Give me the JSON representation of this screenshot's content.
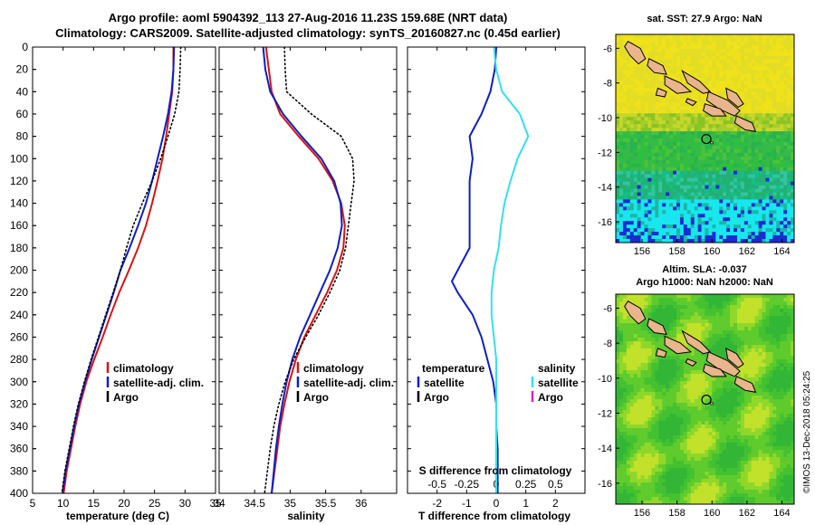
{
  "title": {
    "line1": "Argo profile: aoml 5904392_113 27-Aug-2016 11.23S 159.68E (NRT data)",
    "line2": "Climatology: CARS2009. Satellite-adjusted climatology: synTS_20160827.nc (0.45d earlier)"
  },
  "timestamp": "©IMOS 13-Dec-2018 05:24:25",
  "colors": {
    "climatology": "#dd1111",
    "satellite": "#0b1fc8",
    "argo": "#000000",
    "sat_s": "#33e0ee",
    "argo_s": "#cc22cc",
    "land": "#e8b58c"
  },
  "chart_data": [
    {
      "id": "temperature",
      "type": "line",
      "xlabel": "temperature (deg C)",
      "ylabel": "pressure",
      "xlim": [
        5,
        35
      ],
      "ylim": [
        400,
        0
      ],
      "xticks": [
        5,
        10,
        15,
        20,
        25,
        30,
        35
      ],
      "yticks": [
        0,
        20,
        40,
        60,
        80,
        100,
        120,
        140,
        160,
        180,
        200,
        220,
        240,
        260,
        280,
        300,
        320,
        340,
        360,
        380,
        400
      ],
      "legend": [
        "climatology",
        "satellite-adj. clim.",
        "Argo"
      ],
      "series": [
        {
          "name": "climatology",
          "style": "solid",
          "color": "#dd1111",
          "depth": [
            0,
            20,
            40,
            60,
            80,
            100,
            120,
            140,
            160,
            180,
            200,
            220,
            240,
            260,
            280,
            300,
            320,
            340,
            360,
            380,
            400
          ],
          "values": [
            28.1,
            28.1,
            27.9,
            27.4,
            26.9,
            26.3,
            25.5,
            24.6,
            23.6,
            22.3,
            20.8,
            19.2,
            17.8,
            16.5,
            15.1,
            13.8,
            12.8,
            12.0,
            11.3,
            10.6,
            10.1
          ]
        },
        {
          "name": "satellite-adj. clim.",
          "style": "solid",
          "color": "#0b1fc8",
          "depth": [
            0,
            20,
            40,
            60,
            80,
            100,
            120,
            140,
            160,
            180,
            200,
            220,
            240,
            260,
            280,
            300,
            320,
            340,
            360,
            380,
            400
          ],
          "values": [
            28.2,
            28.1,
            27.8,
            27.2,
            26.4,
            25.5,
            24.6,
            23.6,
            22.3,
            20.9,
            19.4,
            18.3,
            17.1,
            15.9,
            14.7,
            13.6,
            12.6,
            11.8,
            11.1,
            10.4,
            9.9
          ]
        },
        {
          "name": "Argo",
          "style": "dotted",
          "color": "#000000",
          "depth": [
            0,
            20,
            40,
            60,
            80,
            100,
            120,
            140,
            160,
            180,
            200,
            220,
            240,
            260,
            280,
            300,
            320,
            340,
            360,
            380,
            400
          ],
          "values": [
            29.3,
            29.2,
            29.0,
            28.3,
            27.2,
            26.0,
            24.6,
            23.0,
            21.5,
            20.4,
            19.4,
            18.2,
            17.0,
            15.8,
            14.6,
            13.5,
            12.5,
            11.7,
            11.0,
            10.3,
            9.8
          ]
        }
      ]
    },
    {
      "id": "salinity",
      "type": "line",
      "xlabel": "salinity",
      "ylabel": "pressure",
      "xlim": [
        34,
        36.5
      ],
      "ylim": [
        400,
        0
      ],
      "xticks": [
        34,
        34.5,
        35,
        35.5,
        36
      ],
      "legend": [
        "climatology",
        "satellite-adj. clim.",
        "Argo"
      ],
      "series": [
        {
          "name": "climatology",
          "style": "solid",
          "color": "#dd1111",
          "depth": [
            0,
            20,
            40,
            60,
            80,
            100,
            120,
            140,
            160,
            180,
            200,
            220,
            240,
            260,
            280,
            300,
            320,
            340,
            360,
            380,
            400
          ],
          "values": [
            34.66,
            34.7,
            34.74,
            34.86,
            35.12,
            35.4,
            35.6,
            35.72,
            35.77,
            35.75,
            35.66,
            35.52,
            35.36,
            35.2,
            35.08,
            34.99,
            34.92,
            34.86,
            34.82,
            34.78,
            34.74
          ]
        },
        {
          "name": "satellite-adj. clim.",
          "style": "solid",
          "color": "#0b1fc8",
          "depth": [
            0,
            20,
            40,
            60,
            80,
            100,
            120,
            140,
            160,
            180,
            200,
            220,
            240,
            260,
            280,
            300,
            320,
            340,
            360,
            380,
            400
          ],
          "values": [
            34.62,
            34.65,
            34.72,
            34.9,
            35.16,
            35.44,
            35.62,
            35.71,
            35.73,
            35.67,
            35.56,
            35.42,
            35.28,
            35.14,
            35.03,
            34.95,
            34.89,
            34.84,
            34.8,
            34.77,
            34.74
          ]
        },
        {
          "name": "Argo",
          "style": "dotted",
          "color": "#000000",
          "depth": [
            0,
            20,
            40,
            60,
            80,
            100,
            120,
            140,
            160,
            180,
            200,
            220,
            240,
            260,
            280,
            300,
            320,
            340,
            360,
            380,
            400
          ],
          "values": [
            34.92,
            34.93,
            34.95,
            35.3,
            35.72,
            35.88,
            35.9,
            35.86,
            35.82,
            35.78,
            35.7,
            35.56,
            35.4,
            35.22,
            35.05,
            34.93,
            34.84,
            34.77,
            34.72,
            34.68,
            34.64
          ]
        }
      ]
    },
    {
      "id": "difference",
      "type": "line",
      "xlabel": "T difference from climatology",
      "top_xlabel": "S difference from climatology",
      "ylabel": "pressure",
      "xlim": [
        -3,
        3
      ],
      "ylim": [
        400,
        0
      ],
      "xticks": [
        -2,
        -1,
        0,
        1,
        2
      ],
      "s_xlim": [
        -0.75,
        0.75
      ],
      "s_xticks": [
        "-0.5",
        "-0.25",
        "0",
        "0.25",
        "0.5"
      ],
      "legend_temperature_title": "temperature",
      "legend_salinity_title": "salinity",
      "legend_temperature": [
        "satellite",
        "Argo"
      ],
      "legend_salinity": [
        "satellite",
        "Argo"
      ],
      "series": [
        {
          "name": "T satellite",
          "style": "solid",
          "color": "#0b1fc8",
          "depth": [
            0,
            20,
            40,
            60,
            80,
            100,
            120,
            140,
            160,
            180,
            200,
            210,
            220,
            240,
            260,
            280,
            300,
            320,
            340,
            360,
            380,
            400
          ],
          "values": [
            0.0,
            -0.05,
            -0.2,
            -0.5,
            -0.9,
            -0.8,
            -0.9,
            -0.9,
            -0.9,
            -0.9,
            -1.3,
            -1.5,
            -1.3,
            -0.8,
            -0.5,
            -0.3,
            -0.1,
            0.0,
            0.0,
            0.05,
            0.05,
            0.05
          ]
        },
        {
          "name": "S satellite",
          "style": "solid",
          "color": "#33e0ee",
          "depth": [
            0,
            20,
            40,
            60,
            80,
            100,
            120,
            140,
            160,
            180,
            200,
            220,
            240,
            260,
            280,
            300,
            320,
            340,
            360,
            380,
            400
          ],
          "values": [
            -0.02,
            0.0,
            0.05,
            0.2,
            0.27,
            0.18,
            0.12,
            0.07,
            0.04,
            0.02,
            -0.02,
            -0.04,
            -0.04,
            -0.02,
            0.0,
            0.0,
            0.0,
            0.0,
            0.0,
            0.0,
            0.0
          ]
        }
      ]
    }
  ],
  "maps": [
    {
      "id": "sst",
      "title": "sat. SST: 27.9 Argo: NaN",
      "subtitle": "",
      "type": "heatmap",
      "lon_range": [
        154.5,
        164.7
      ],
      "lat_range": [
        -17.2,
        -5.2
      ],
      "lon_ticks": [
        156,
        158,
        160,
        162,
        164
      ],
      "lat_ticks": [
        -6,
        -8,
        -10,
        -12,
        -14,
        -16
      ],
      "argo_lon": 159.68,
      "argo_lat": -11.23
    },
    {
      "id": "sla",
      "title": "Altim. SLA: -0.037",
      "subtitle": "Argo h1000: NaN h2000: NaN",
      "type": "heatmap",
      "lon_range": [
        154.5,
        164.7
      ],
      "lat_range": [
        -17.2,
        -5.2
      ],
      "lon_ticks": [
        156,
        158,
        160,
        162,
        164
      ],
      "lat_ticks": [
        -6,
        -8,
        -10,
        -12,
        -14,
        -16
      ],
      "argo_lon": 159.68,
      "argo_lat": -11.23
    }
  ]
}
